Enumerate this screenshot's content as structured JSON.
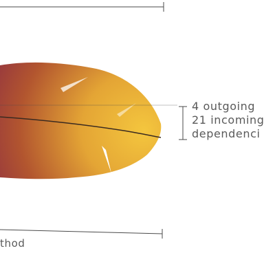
{
  "annotation": {
    "line1": "4 outgoing",
    "line2": "21 incoming",
    "line3": "dependenci"
  },
  "bottom_label": "thod",
  "colors": {
    "feather_tip": "#f3c43c",
    "feather_mid": "#c87a2c",
    "feather_edge": "#8c2c44",
    "rachis": "#3a2a20",
    "rule": "#4a4a4a"
  }
}
